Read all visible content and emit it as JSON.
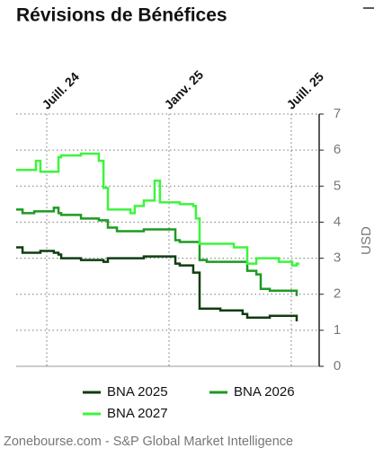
{
  "chart_data": {
    "type": "line",
    "title": "Révisions de Bénéfices",
    "y_label": "USD",
    "step": true,
    "grid": true,
    "source": "Zonebourse.com - S&P Global Market Intelligence",
    "x": [
      2024.375,
      2024.401,
      2024.449,
      2024.456,
      2024.474,
      2024.529,
      2024.548,
      2024.559,
      2024.64,
      2024.695,
      2024.713,
      2024.732,
      2024.75,
      2024.768,
      2024.787,
      2024.842,
      2024.86,
      2024.897,
      2024.915,
      2024.941,
      2024.963,
      2025.007,
      2025.026,
      2025.044,
      2025.099,
      2025.11,
      2025.125,
      2025.154,
      2025.21,
      2025.265,
      2025.301,
      2025.32,
      2025.357,
      2025.375,
      2025.412,
      2025.449,
      2025.504,
      2025.522,
      2025.533
    ],
    "xlim": [
      2024.375,
      2025.614
    ],
    "xticks": [
      {
        "value": 2024.5,
        "label": "Juill. 24"
      },
      {
        "value": 2025.0,
        "label": "Janv. 25"
      },
      {
        "value": 2025.5,
        "label": "Juill. 25"
      }
    ],
    "ylim": [
      0,
      7
    ],
    "yticks": [
      0,
      1,
      2,
      3,
      4,
      5,
      6,
      7
    ],
    "series": [
      {
        "name": "BNA 2025",
        "color": "#0f3d10",
        "values": [
          3.3,
          3.15,
          3.15,
          3.15,
          3.2,
          3.15,
          3.1,
          3.0,
          2.95,
          2.95,
          2.95,
          2.9,
          3.0,
          3.0,
          3.0,
          3.0,
          3.0,
          3.05,
          3.05,
          3.05,
          3.05,
          3.05,
          2.85,
          2.8,
          2.6,
          2.6,
          1.6,
          1.6,
          1.55,
          1.55,
          1.45,
          1.35,
          1.35,
          1.35,
          1.4,
          1.4,
          1.4,
          1.25,
          null
        ]
      },
      {
        "name": "BNA 2026",
        "color": "#1e9a22",
        "values": [
          4.35,
          4.25,
          4.3,
          4.3,
          4.3,
          4.4,
          4.25,
          4.2,
          4.1,
          4.1,
          4.05,
          4.05,
          3.85,
          3.85,
          3.75,
          3.75,
          3.75,
          3.8,
          3.8,
          3.8,
          3.8,
          3.8,
          3.5,
          3.45,
          3.45,
          3.45,
          2.95,
          2.9,
          2.9,
          2.9,
          2.9,
          2.65,
          2.55,
          2.15,
          2.1,
          2.1,
          2.1,
          1.95,
          null
        ]
      },
      {
        "name": "BNA 2027",
        "color": "#3cf53c",
        "values": [
          5.45,
          5.45,
          5.45,
          5.7,
          5.4,
          5.4,
          5.8,
          5.85,
          5.9,
          5.9,
          5.7,
          4.95,
          4.35,
          4.35,
          4.35,
          4.25,
          4.45,
          4.6,
          4.6,
          5.15,
          4.55,
          4.55,
          4.55,
          4.5,
          4.45,
          4.1,
          3.4,
          3.4,
          3.4,
          3.3,
          3.3,
          2.85,
          3.0,
          3.0,
          3.0,
          2.9,
          2.8,
          2.85,
          2.85
        ]
      }
    ]
  }
}
